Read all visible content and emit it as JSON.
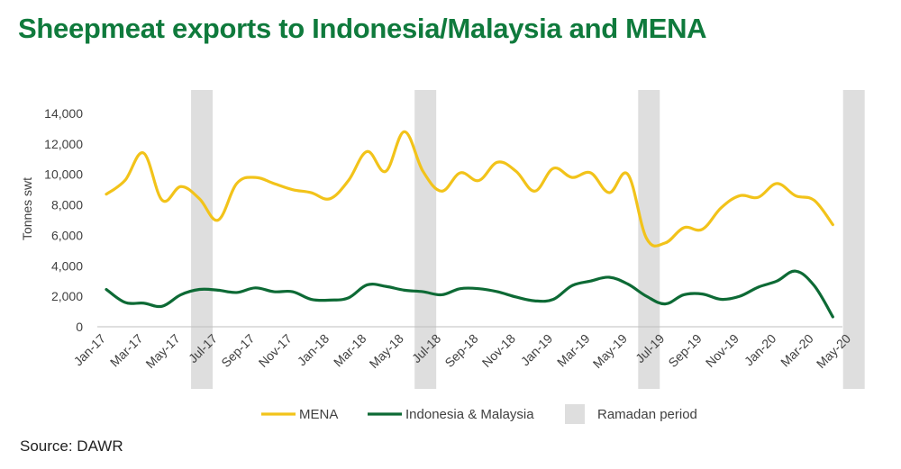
{
  "title": "Sheepmeat exports to Indonesia/Malaysia and MENA",
  "source": "Source: DAWR",
  "chart_data": {
    "type": "line",
    "ylabel": "Tonnes swt",
    "ylim": [
      0,
      14000
    ],
    "yticks": [
      0,
      2000,
      4000,
      6000,
      8000,
      10000,
      12000,
      14000
    ],
    "ytick_labels": [
      "0",
      "2,000",
      "4,000",
      "6,000",
      "8,000",
      "10,000",
      "12,000",
      "14,000"
    ],
    "xtick_labels": [
      "Jan-17",
      "Mar-17",
      "May-17",
      "Jul-17",
      "Sep-17",
      "Nov-17",
      "Jan-18",
      "Mar-18",
      "May-18",
      "Jul-18",
      "Sep-18",
      "Nov-18",
      "Jan-19",
      "Mar-19",
      "May-19",
      "Jul-19",
      "Sep-19",
      "Nov-19",
      "Jan-20",
      "Mar-20",
      "May-20"
    ],
    "x": [
      "Jan-17",
      "Feb-17",
      "Mar-17",
      "Apr-17",
      "May-17",
      "Jun-17",
      "Jul-17",
      "Aug-17",
      "Sep-17",
      "Oct-17",
      "Nov-17",
      "Dec-17",
      "Jan-18",
      "Feb-18",
      "Mar-18",
      "Apr-18",
      "May-18",
      "Jun-18",
      "Jul-18",
      "Aug-18",
      "Sep-18",
      "Oct-18",
      "Nov-18",
      "Dec-18",
      "Jan-19",
      "Feb-19",
      "Mar-19",
      "Apr-19",
      "May-19",
      "Jun-19",
      "Jul-19",
      "Aug-19",
      "Sep-19",
      "Oct-19",
      "Nov-19",
      "Dec-19",
      "Jan-20",
      "Feb-20",
      "Mar-20",
      "Apr-20"
    ],
    "series": [
      {
        "name": "MENA",
        "color": "#f2c31a",
        "values": [
          8700,
          9600,
          11400,
          8300,
          9200,
          8400,
          7000,
          9400,
          9800,
          9400,
          9000,
          8800,
          8400,
          9600,
          11500,
          10200,
          12800,
          10200,
          8900,
          10100,
          9600,
          10800,
          10200,
          8900,
          10400,
          9800,
          10100,
          8800,
          10000,
          5800,
          5500,
          6500,
          6400,
          7800,
          8600,
          8500,
          9400,
          8600,
          8300,
          6700
        ]
      },
      {
        "name": "Indonesia & Malaysia",
        "color": "#0d6a35",
        "values": [
          2450,
          1600,
          1550,
          1350,
          2100,
          2450,
          2400,
          2250,
          2550,
          2300,
          2300,
          1800,
          1750,
          1900,
          2750,
          2650,
          2400,
          2300,
          2100,
          2500,
          2500,
          2300,
          1950,
          1700,
          1800,
          2700,
          3000,
          3250,
          2800,
          2000,
          1500,
          2100,
          2150,
          1800,
          2000,
          2600,
          3000,
          3650,
          2700,
          650
        ]
      }
    ],
    "ramadan_periods": [
      {
        "start": "May-17",
        "end": "Jun-17"
      },
      {
        "start": "May-18",
        "end": "Jun-18"
      },
      {
        "start": "May-19",
        "end": "Jun-19"
      },
      {
        "start": "Apr-20",
        "end": "May-20"
      }
    ],
    "legend": {
      "position": "bottom",
      "items": [
        {
          "label": "MENA",
          "kind": "line",
          "color": "#f2c31a"
        },
        {
          "label": "Indonesia & Malaysia",
          "kind": "line",
          "color": "#0d6a35"
        },
        {
          "label": "Ramadan period",
          "kind": "box",
          "color": "#dedede"
        }
      ]
    },
    "grid": false
  }
}
